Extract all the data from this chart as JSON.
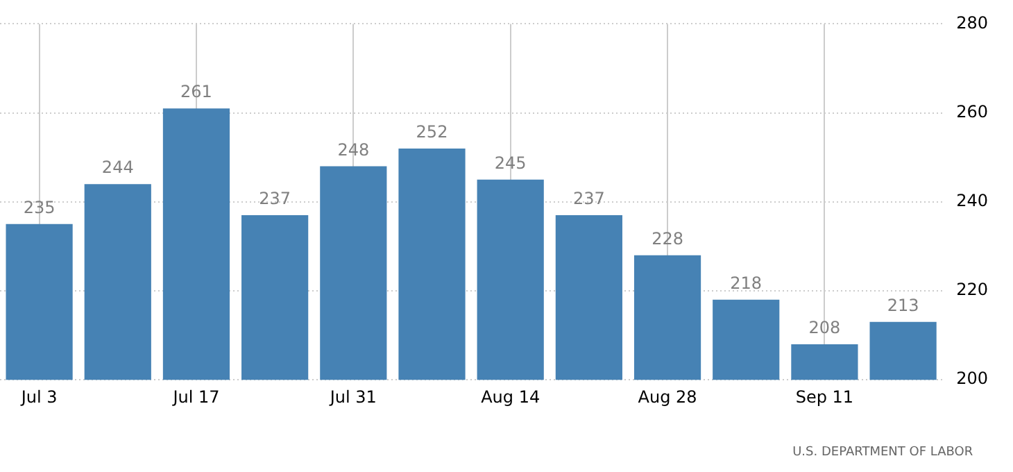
{
  "chart_data": {
    "type": "bar",
    "categories": [
      "Jul 3",
      null,
      "Jul 17",
      null,
      "Jul 31",
      null,
      "Aug 14",
      null,
      "Aug 28",
      null,
      "Sep 11",
      null
    ],
    "values": [
      235,
      244,
      261,
      237,
      248,
      252,
      245,
      237,
      228,
      218,
      208,
      213
    ],
    "color": "#4682b4",
    "ylim": [
      200,
      280
    ],
    "yticks": [
      200,
      220,
      240,
      260,
      280
    ],
    "grid": true,
    "data_labels": true,
    "annotations": [
      "U.S. DEPARTMENT OF LABOR"
    ]
  }
}
